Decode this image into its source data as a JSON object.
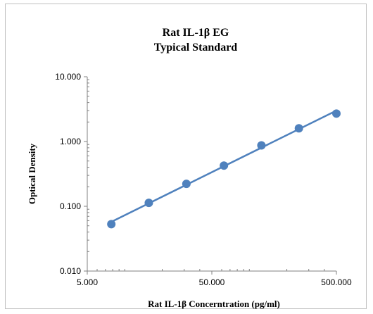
{
  "chart_data": {
    "type": "scatter",
    "title": "Rat IL-1β EG",
    "subtitle": "Typical Standard",
    "xlabel": "Rat IL-1β Concerntration (pg/ml)",
    "ylabel": "Optical Density",
    "x_scale": "log",
    "y_scale": "log",
    "xlim": [
      5,
      500
    ],
    "ylim": [
      0.01,
      10
    ],
    "x_ticks": [
      5,
      50,
      500
    ],
    "x_tick_labels": [
      "5.000",
      "50.000",
      "500.000"
    ],
    "y_ticks": [
      0.01,
      0.1,
      1,
      10
    ],
    "y_tick_labels": [
      "0.010",
      "0.100",
      "1.000",
      "10.000"
    ],
    "grid": false,
    "legend": false,
    "colors": {
      "series": "#4f81bd",
      "axis": "#808080"
    },
    "series": [
      {
        "x": [
          7.8,
          15.6,
          31.25,
          62.5,
          125,
          250,
          500
        ],
        "y": [
          0.053,
          0.113,
          0.222,
          0.425,
          0.872,
          1.6,
          2.7
        ],
        "trendline": true
      }
    ]
  }
}
